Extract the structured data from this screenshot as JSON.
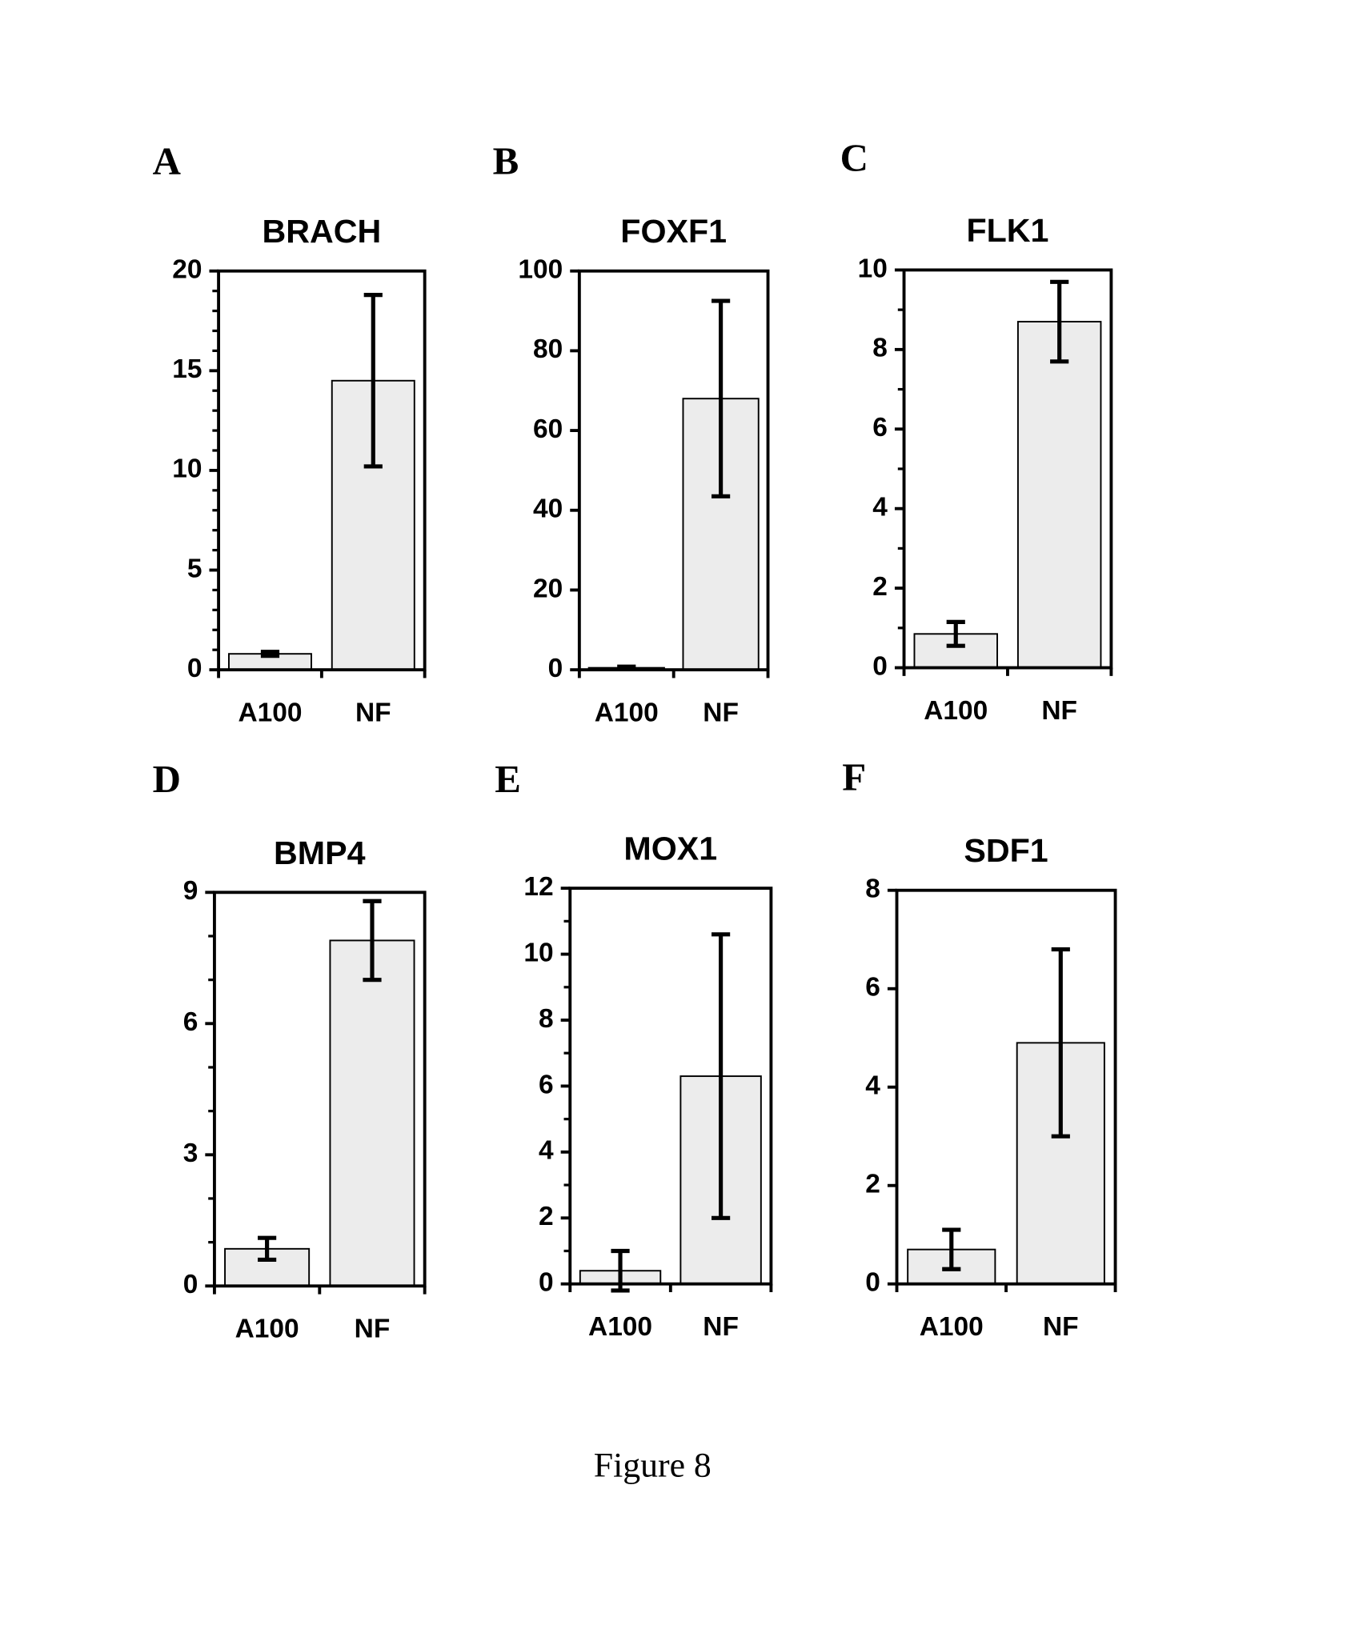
{
  "chart_data": [
    {
      "type": "bar",
      "panel": "A",
      "title": "BRACH",
      "categories": [
        "A100",
        "NF"
      ],
      "values": [
        0.8,
        14.5
      ],
      "errors": [
        0.1,
        4.3
      ],
      "color": "#ececec",
      "ylim": [
        0,
        20
      ],
      "yticks": [
        0,
        5,
        10,
        15,
        20
      ],
      "yminorticks": [
        1,
        2,
        3,
        4,
        6,
        7,
        8,
        9,
        11,
        12,
        13,
        14,
        16,
        17,
        18,
        19
      ]
    },
    {
      "type": "bar",
      "panel": "B",
      "title": "FOXF1",
      "categories": [
        "A100",
        "NF"
      ],
      "values": [
        0.5,
        68
      ],
      "errors": [
        0.3,
        24.5
      ],
      "color": "#ececec",
      "ylim": [
        0,
        100
      ],
      "yticks": [
        0,
        20,
        40,
        60,
        80,
        100
      ],
      "yminorticks": []
    },
    {
      "type": "bar",
      "panel": "C",
      "title": "FLK1",
      "categories": [
        "A100",
        "NF"
      ],
      "values": [
        0.85,
        8.7
      ],
      "errors": [
        0.3,
        1.0
      ],
      "color": "#ececec",
      "ylim": [
        0,
        10
      ],
      "yticks": [
        0,
        2,
        4,
        6,
        8,
        10
      ],
      "yminorticks": [
        1,
        3,
        5,
        7,
        9
      ]
    },
    {
      "type": "bar",
      "panel": "D",
      "title": "BMP4",
      "categories": [
        "A100",
        "NF"
      ],
      "values": [
        0.85,
        7.9
      ],
      "errors": [
        0.25,
        0.9
      ],
      "color": "#ececec",
      "ylim": [
        0,
        9
      ],
      "yticks": [
        0,
        3,
        6,
        9
      ],
      "yminorticks": [
        1,
        2,
        4,
        5,
        7,
        8
      ]
    },
    {
      "type": "bar",
      "panel": "E",
      "title": "MOX1",
      "categories": [
        "A100",
        "NF"
      ],
      "values": [
        0.4,
        6.3
      ],
      "errors": [
        0.6,
        4.3
      ],
      "color": "#ececec",
      "ylim": [
        0,
        12
      ],
      "yticks": [
        0,
        2,
        4,
        6,
        8,
        10,
        12
      ],
      "yminorticks": [
        1,
        3,
        5,
        7,
        9,
        11
      ]
    },
    {
      "type": "bar",
      "panel": "F",
      "title": "SDF1",
      "categories": [
        "A100",
        "NF"
      ],
      "values": [
        0.7,
        4.9
      ],
      "errors": [
        0.4,
        1.9
      ],
      "color": "#ececec",
      "ylim": [
        0,
        8
      ],
      "yticks": [
        0,
        2,
        4,
        6,
        8
      ],
      "yminorticks": []
    }
  ],
  "caption": "Figure 8"
}
